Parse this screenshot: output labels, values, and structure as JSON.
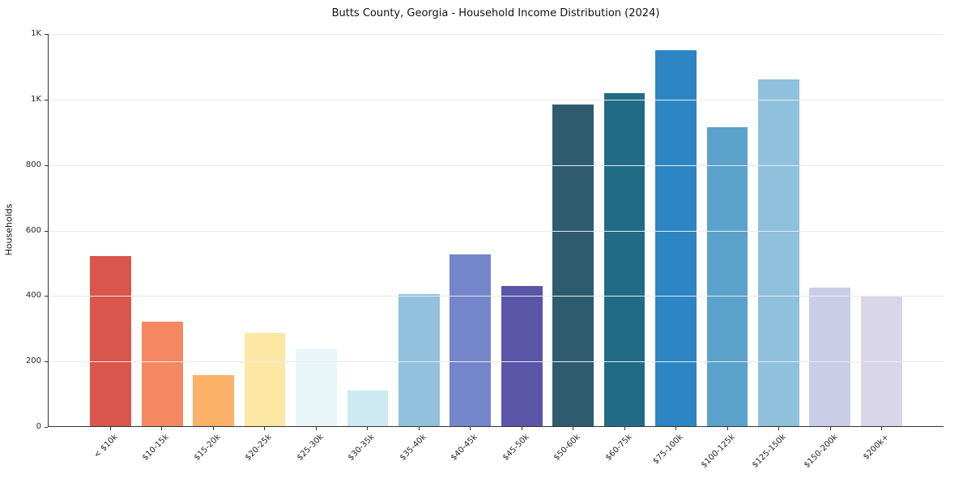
{
  "title": "Butts County, Georgia - Household Income Distribution (2024)",
  "chart_data": {
    "type": "bar",
    "title": "Butts County, Georgia - Household Income Distribution (2024)",
    "xlabel": "",
    "ylabel": "Households",
    "ylim": [
      0,
      1200
    ],
    "grid": true,
    "legend": "none",
    "background": "#ffffff",
    "categories": [
      "< $10k",
      "$10-15k",
      "$15-20k",
      "$20-25k",
      "$25-30k",
      "$30-35k",
      "$35-40k",
      "$40-45k",
      "$45-50k",
      "$50-60k",
      "$60-75k",
      "$75-100k",
      "$100-125k",
      "$125-150k",
      "$150-200k",
      "$200k+"
    ],
    "values": [
      520,
      320,
      155,
      285,
      235,
      110,
      403,
      525,
      428,
      985,
      1020,
      1150,
      915,
      1060,
      425,
      400
    ],
    "bar_colors": [
      "#d9564c",
      "#f58860",
      "#fbb168",
      "#fce8a4",
      "#e8f6f9",
      "#cdeaf2",
      "#92c1dd",
      "#7585cb",
      "#5b55a7",
      "#2e5c6e",
      "#226b87",
      "#2d86c3",
      "#5aa2c9",
      "#8fc0dc",
      "#c9cee6",
      "#d8d6e8"
    ],
    "yticks": [
      {
        "value": 0,
        "label": "0"
      },
      {
        "value": 200,
        "label": "200"
      },
      {
        "value": 400,
        "label": "400"
      },
      {
        "value": 600,
        "label": "600"
      },
      {
        "value": 800,
        "label": "800"
      },
      {
        "value": 1000,
        "label": "1K"
      },
      {
        "value": 1200,
        "label": "1K"
      }
    ]
  }
}
